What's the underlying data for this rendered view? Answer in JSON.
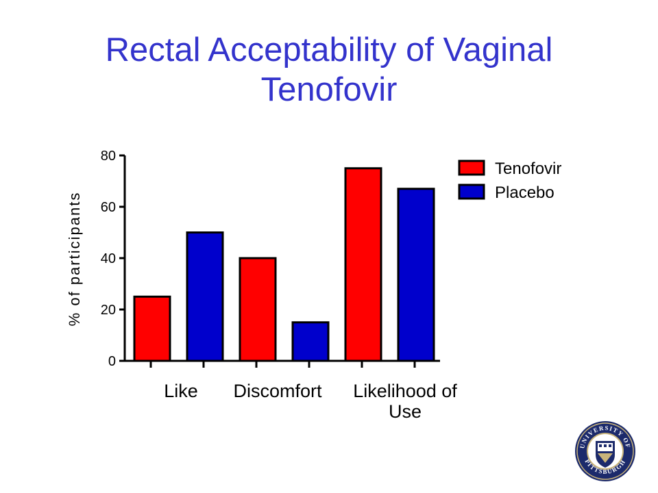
{
  "slide": {
    "title_line1": "Rectal Acceptability of Vaginal",
    "title_line2": "Tenofovir"
  },
  "colors": {
    "title": "#3333cc",
    "tenofovir": "#ff0000",
    "placebo": "#0000cc",
    "axis": "#000000"
  },
  "chart_data": {
    "type": "bar",
    "title": "",
    "ylabel": "% of participants",
    "xlabel": "",
    "ylim": [
      0,
      80
    ],
    "yticks": [
      0,
      20,
      40,
      60,
      80
    ],
    "categories": [
      [
        "Like"
      ],
      [
        "Discomfort"
      ],
      [
        "Likelihood of",
        "Use"
      ]
    ],
    "series": [
      {
        "name": "Tenofovir",
        "color": "#ff0000",
        "values": [
          25,
          40,
          75
        ]
      },
      {
        "name": "Placebo",
        "color": "#0000cc",
        "values": [
          50,
          15,
          67
        ]
      }
    ],
    "legend_position": "top-right",
    "grid": false
  },
  "logo": {
    "text_top": "UNIVERSITY OF",
    "text_bottom": "PITTSBURGH"
  }
}
